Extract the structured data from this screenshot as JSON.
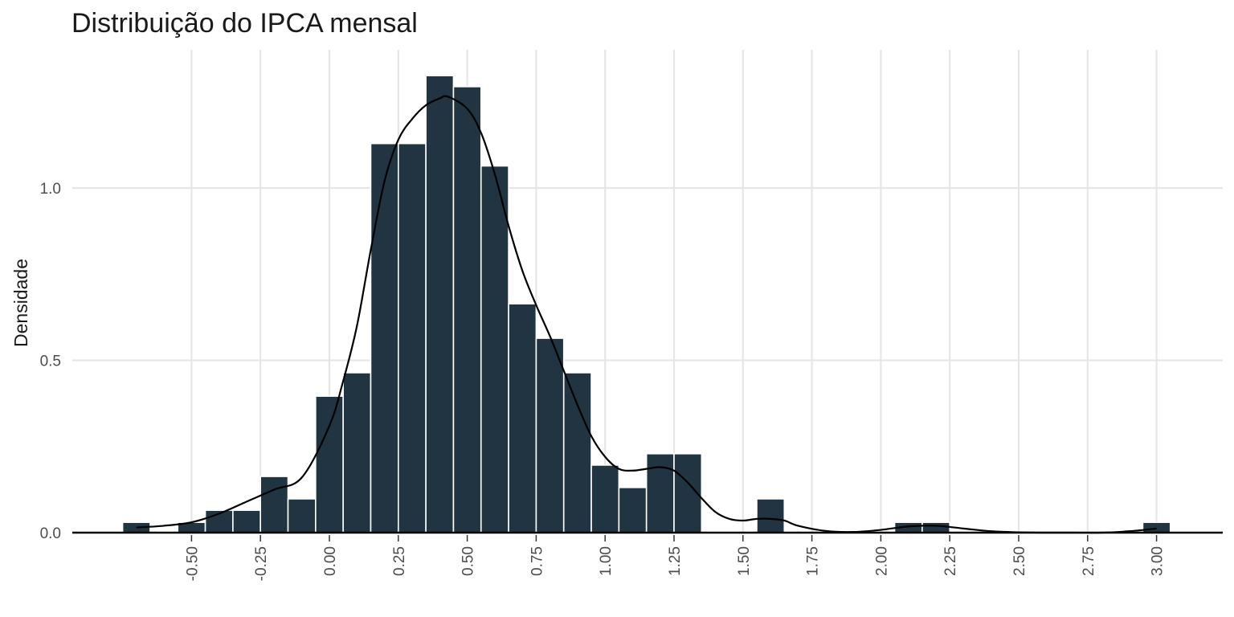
{
  "chart_data": {
    "type": "bar",
    "title": "Distribuição do IPCA mensal",
    "xlabel": "",
    "ylabel": "Densidade",
    "bin_width": 0.1,
    "bin_centers": [
      -0.7,
      -0.5,
      -0.4,
      -0.3,
      -0.2,
      -0.1,
      0.0,
      0.1,
      0.2,
      0.3,
      0.4,
      0.5,
      0.6,
      0.7,
      0.8,
      0.9,
      1.0,
      1.1,
      1.2,
      1.3,
      1.6,
      2.1,
      2.2,
      3.0
    ],
    "values": [
      0.03,
      0.03,
      0.065,
      0.065,
      0.163,
      0.098,
      0.396,
      0.464,
      1.129,
      1.129,
      1.326,
      1.294,
      1.064,
      0.664,
      0.564,
      0.464,
      0.196,
      0.131,
      0.229,
      0.229,
      0.098,
      0.03,
      0.03,
      0.03
    ],
    "density_curve": {
      "x": [
        -0.7,
        -0.6,
        -0.5,
        -0.4,
        -0.3,
        -0.2,
        -0.1,
        0.0,
        0.05,
        0.1,
        0.15,
        0.2,
        0.25,
        0.3,
        0.35,
        0.4,
        0.43,
        0.5,
        0.55,
        0.6,
        0.65,
        0.7,
        0.75,
        0.8,
        0.85,
        0.9,
        0.95,
        1.0,
        1.05,
        1.1,
        1.15,
        1.2,
        1.25,
        1.3,
        1.35,
        1.4,
        1.45,
        1.5,
        1.55,
        1.6,
        1.65,
        1.7,
        1.8,
        1.9,
        2.0,
        2.1,
        2.2,
        2.3,
        2.4,
        2.5,
        2.6,
        2.7,
        2.8,
        2.9,
        3.0
      ],
      "y": [
        0.015,
        0.02,
        0.03,
        0.055,
        0.09,
        0.125,
        0.16,
        0.31,
        0.44,
        0.6,
        0.82,
        1.02,
        1.14,
        1.2,
        1.24,
        1.26,
        1.265,
        1.23,
        1.16,
        1.04,
        0.89,
        0.76,
        0.66,
        0.57,
        0.47,
        0.37,
        0.28,
        0.22,
        0.185,
        0.18,
        0.185,
        0.19,
        0.18,
        0.145,
        0.1,
        0.06,
        0.04,
        0.035,
        0.04,
        0.04,
        0.035,
        0.02,
        0.005,
        0.002,
        0.008,
        0.018,
        0.02,
        0.012,
        0.004,
        0.001,
        0.0,
        0.0,
        0.0,
        0.004,
        0.012
      ]
    },
    "x_ticks": [
      "-0.50",
      "-0.25",
      "0.00",
      "0.25",
      "0.50",
      "0.75",
      "1.00",
      "1.25",
      "1.50",
      "1.75",
      "2.00",
      "2.25",
      "2.50",
      "2.75",
      "3.00"
    ],
    "x_tick_values": [
      -0.5,
      -0.25,
      0.0,
      0.25,
      0.5,
      0.75,
      1.0,
      1.25,
      1.5,
      1.75,
      2.0,
      2.25,
      2.5,
      2.75,
      3.0
    ],
    "y_ticks": [
      "0.0",
      "0.5",
      "1.0"
    ],
    "y_tick_values": [
      0.0,
      0.5,
      1.0
    ],
    "xlim": [
      -0.85,
      3.23
    ],
    "ylim": [
      0,
      1.34
    ],
    "grid": true,
    "legend": "none",
    "colors": {
      "bar_fill": "#203541",
      "bar_edge": "#ffffff",
      "curve": "#000000",
      "grid": "#e6e6e6",
      "baseline": "#000000"
    }
  }
}
